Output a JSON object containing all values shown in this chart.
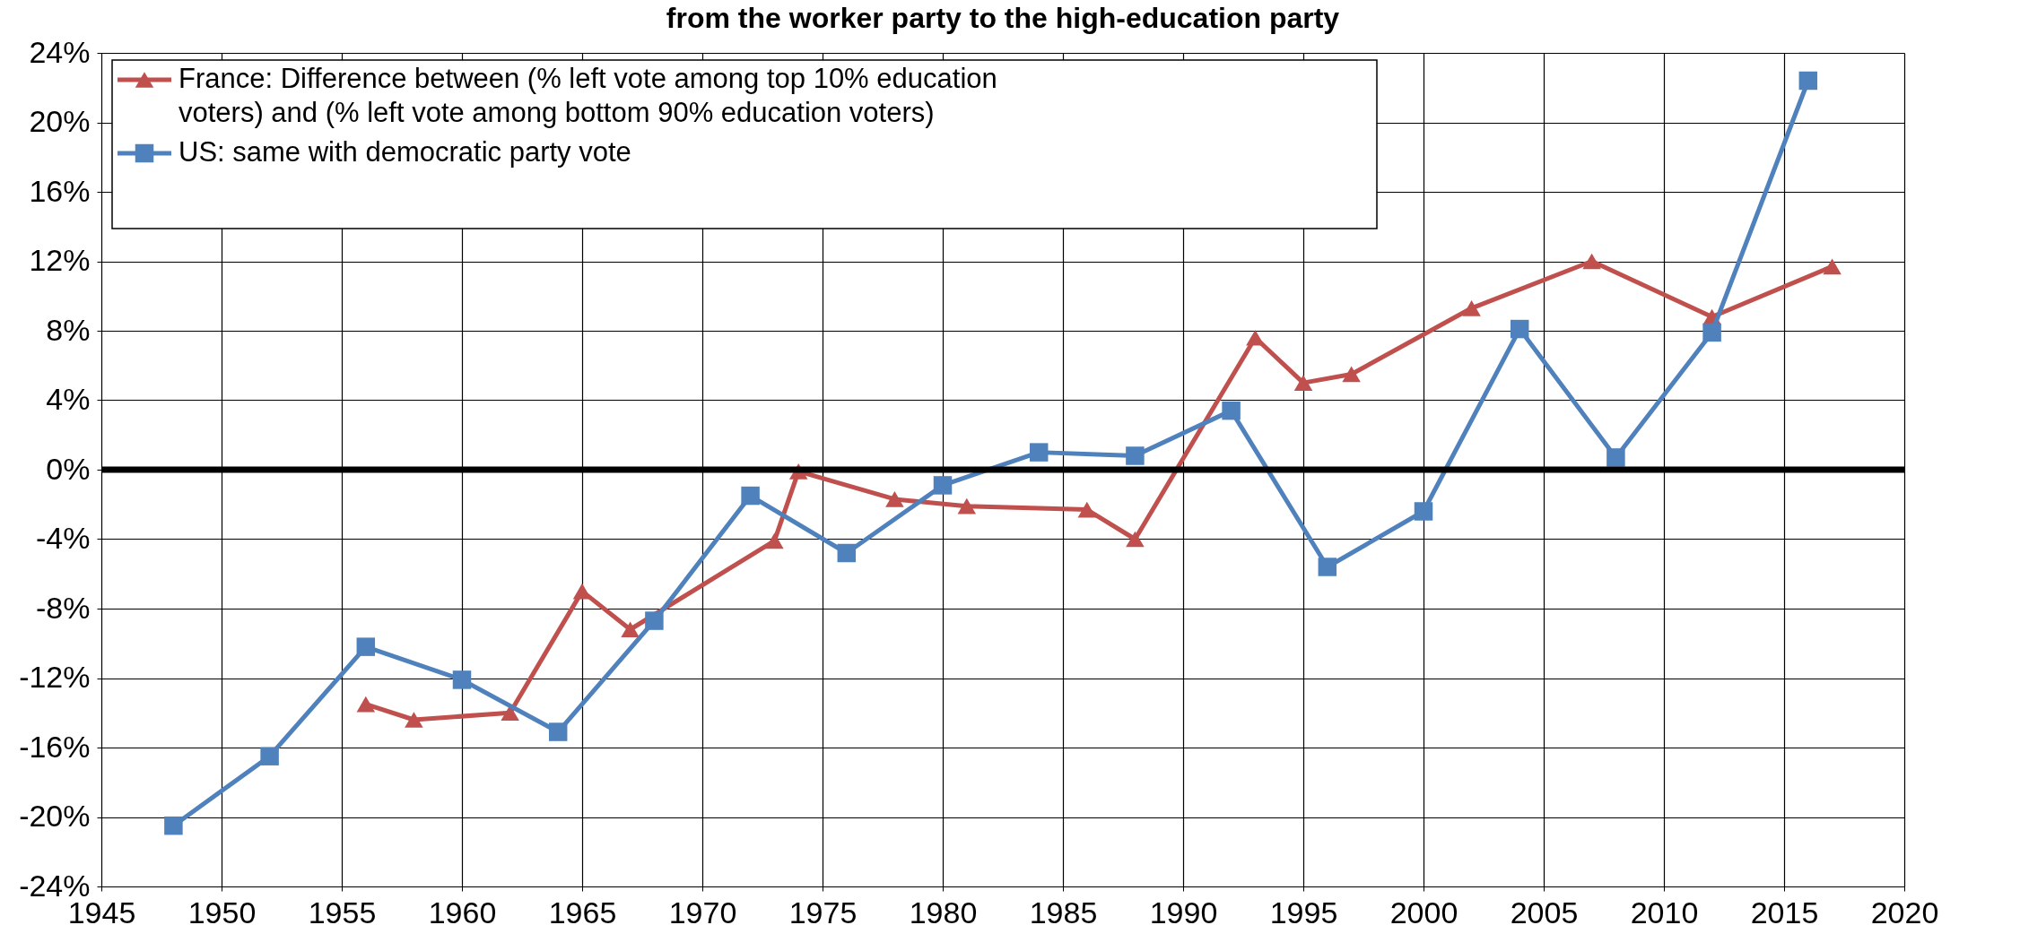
{
  "chart_data": {
    "type": "line",
    "title": "from the worker party to the high-education party",
    "series": [
      {
        "name": "France: Difference between (% left vote among top 10% education voters) and (% left vote among bottom 90% education voters)",
        "color": "#c0504d",
        "marker": "triangle",
        "x": [
          1956,
          1958,
          1962,
          1965,
          1967,
          1973,
          1974,
          1978,
          1981,
          1986,
          1988,
          1993,
          1995,
          1997,
          2002,
          2007,
          2012,
          2017
        ],
        "values": [
          -13.5,
          -14.4,
          -14.0,
          -7.0,
          -9.2,
          -4.1,
          -0.1,
          -1.7,
          -2.1,
          -2.3,
          -4.0,
          7.6,
          5.0,
          5.5,
          9.3,
          12.0,
          8.8,
          11.7
        ]
      },
      {
        "name": "US: same with democratic party vote",
        "color": "#4f81bd",
        "marker": "square",
        "x": [
          1948,
          1952,
          1956,
          1960,
          1964,
          1968,
          1972,
          1976,
          1980,
          1984,
          1988,
          1992,
          1996,
          2000,
          2004,
          2008,
          2012,
          2016
        ],
        "values": [
          -20.5,
          -16.5,
          -10.2,
          -12.1,
          -15.1,
          -8.7,
          -1.5,
          -4.8,
          -0.9,
          1.0,
          0.8,
          3.4,
          -5.6,
          -2.4,
          8.1,
          0.7,
          7.9,
          22.4
        ]
      }
    ],
    "xlim": [
      1945,
      2020
    ],
    "xticks": [
      1945,
      1950,
      1955,
      1960,
      1965,
      1970,
      1975,
      1980,
      1985,
      1990,
      1995,
      2000,
      2005,
      2010,
      2015,
      2020
    ],
    "ylim": [
      -24,
      24
    ],
    "yticks": [
      {
        "value": -24,
        "label": "-24%"
      },
      {
        "value": -20,
        "label": "-20%"
      },
      {
        "value": -16,
        "label": "-16%"
      },
      {
        "value": -12,
        "label": "-12%"
      },
      {
        "value": -8,
        "label": "-8%"
      },
      {
        "value": -4,
        "label": "-4%"
      },
      {
        "value": 0,
        "label": "0%"
      },
      {
        "value": 4,
        "label": "4%"
      },
      {
        "value": 8,
        "label": "8%"
      },
      {
        "value": 12,
        "label": "12%"
      },
      {
        "value": 16,
        "label": "16%"
      },
      {
        "value": 20,
        "label": "20%"
      },
      {
        "value": 24,
        "label": "24%"
      }
    ],
    "ref_lines": [
      {
        "axis": "y",
        "value": 0,
        "color": "#000000"
      }
    ],
    "grid": true,
    "legend": "top left"
  }
}
